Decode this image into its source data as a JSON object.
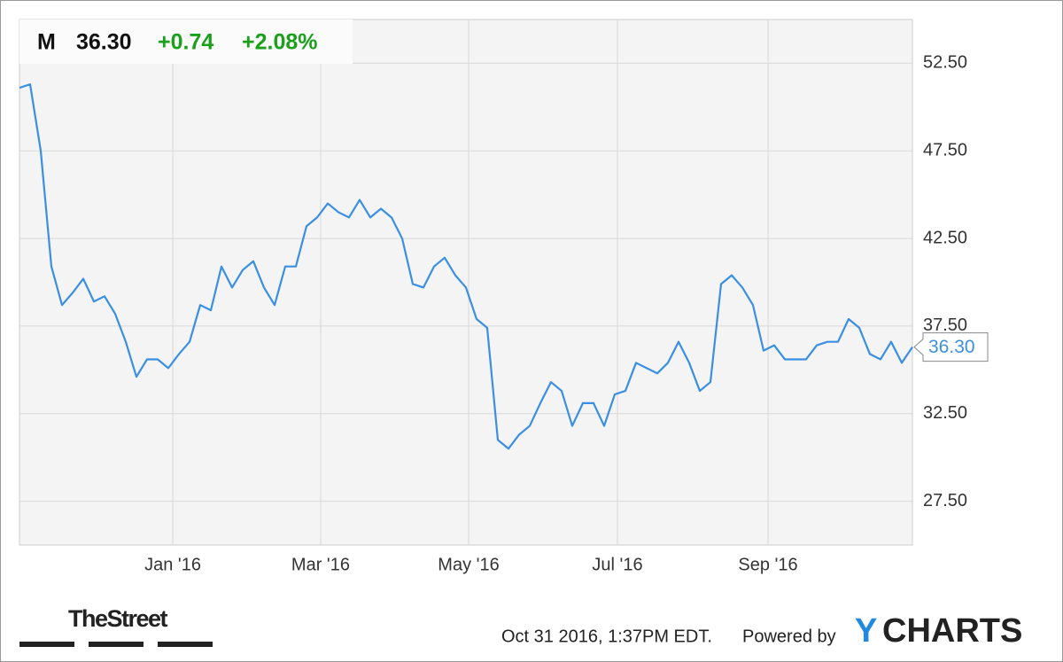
{
  "chart_data": {
    "type": "line",
    "quote": {
      "symbol": "M",
      "price": "36.30",
      "change": "+0.74",
      "change_pct": "+2.08%"
    },
    "series": [
      {
        "name": "M",
        "color": "#3b8fe2",
        "values": [
          51.1,
          51.3,
          47.5,
          40.9,
          38.7,
          39.4,
          40.2,
          38.9,
          39.2,
          38.2,
          36.6,
          34.6,
          35.6,
          35.6,
          35.1,
          35.9,
          36.6,
          38.7,
          38.4,
          40.9,
          39.7,
          40.7,
          41.2,
          39.7,
          38.7,
          40.9,
          40.9,
          43.2,
          43.7,
          44.5,
          44.0,
          43.7,
          44.7,
          43.7,
          44.2,
          43.7,
          42.5,
          39.9,
          39.7,
          40.9,
          41.4,
          40.4,
          39.7,
          37.9,
          37.4,
          31.0,
          30.5,
          31.3,
          31.8,
          33.1,
          34.3,
          33.8,
          31.8,
          33.1,
          33.1,
          31.8,
          33.6,
          33.8,
          35.4,
          35.1,
          34.8,
          35.4,
          36.6,
          35.4,
          33.8,
          34.3,
          39.9,
          40.4,
          39.7,
          38.7,
          36.1,
          36.4,
          35.6,
          35.6,
          35.6,
          36.4,
          36.6,
          36.6,
          37.9,
          37.4,
          35.9,
          35.6,
          36.6,
          35.4,
          36.3
        ]
      }
    ],
    "xlim": [
      0,
      84
    ],
    "xticks": [
      {
        "value": 14.42,
        "label": "Jan '16"
      },
      {
        "value": 28.33,
        "label": "Mar '16"
      },
      {
        "value": 42.25,
        "label": "May '16"
      },
      {
        "value": 56.25,
        "label": "Jul '16"
      },
      {
        "value": 70.42,
        "label": "Sep '16"
      }
    ],
    "ylim": [
      25,
      55
    ],
    "yticks": [
      {
        "value": 27.5,
        "label": "27.50"
      },
      {
        "value": 32.5,
        "label": "32.50"
      },
      {
        "value": 37.5,
        "label": "37.50"
      },
      {
        "value": 42.5,
        "label": "42.50"
      },
      {
        "value": 47.5,
        "label": "47.50"
      },
      {
        "value": 52.5,
        "label": "52.50"
      }
    ],
    "grid": true,
    "footer": {
      "source_logo": "TheStreet",
      "timestamp": "Oct 31 2016, 1:37PM EDT.",
      "powered_by": "Powered by",
      "brand_first": "Y",
      "brand_rest": "CHARTS"
    }
  }
}
